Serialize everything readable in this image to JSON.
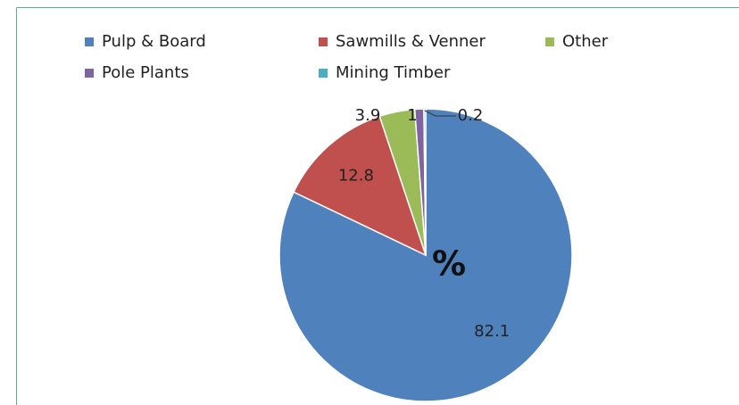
{
  "chart_data": {
    "type": "pie",
    "annotation": "%",
    "categories": [
      "Pulp & Board",
      "Sawmills & Venner",
      "Other",
      "Pole Plants",
      "Mining Timber"
    ],
    "values": [
      82.1,
      12.8,
      3.9,
      1,
      0.2
    ],
    "colors": [
      "#4f81bd",
      "#c0504d",
      "#9bbb59",
      "#8064a2",
      "#4bacc6"
    ],
    "legend": "top"
  }
}
